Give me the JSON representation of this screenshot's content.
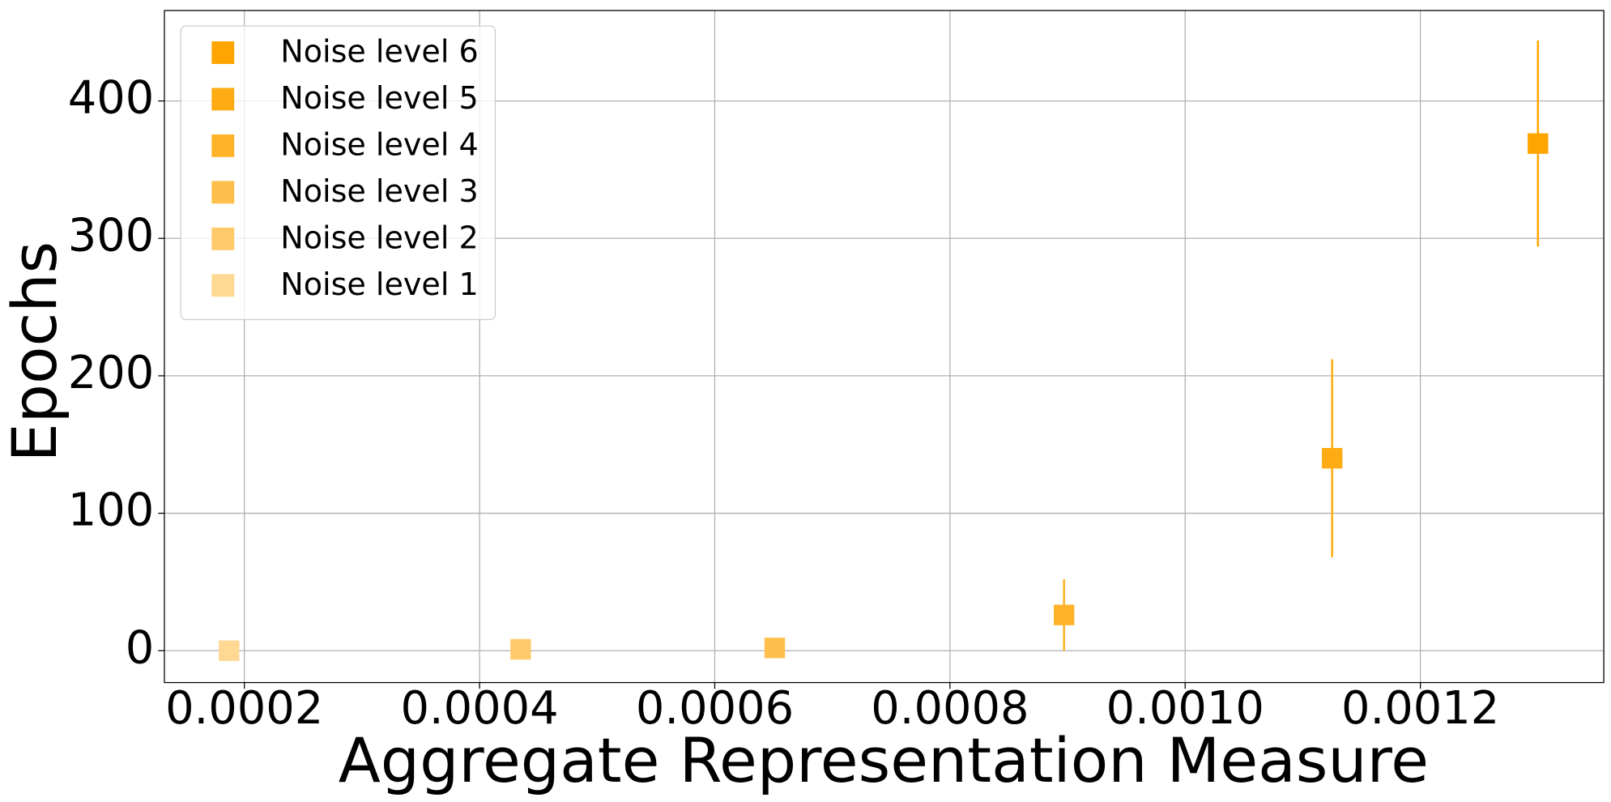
{
  "chart_data": {
    "type": "scatter",
    "xlabel": "Aggregate Representation Measure",
    "ylabel": "Epochs",
    "xlim": [
      0.000132,
      0.001356
    ],
    "ylim": [
      -23.2,
      465.8
    ],
    "xticks": [
      {
        "value": 0.0002,
        "label": "0.0002"
      },
      {
        "value": 0.0004,
        "label": "0.0004"
      },
      {
        "value": 0.0006,
        "label": "0.0006"
      },
      {
        "value": 0.0008,
        "label": "0.0008"
      },
      {
        "value": 0.001,
        "label": "0.0010"
      },
      {
        "value": 0.0012,
        "label": "0.0012"
      }
    ],
    "yticks": [
      0,
      100,
      200,
      300,
      400
    ],
    "grid": true,
    "legend": "upper-left",
    "series": [
      {
        "name": "Noise level 6",
        "color": "#ffa500",
        "x": [
          0.0013
        ],
        "values": [
          369
        ],
        "errors": [
          75
        ]
      },
      {
        "name": "Noise level 5",
        "color": "#ffab14",
        "x": [
          0.001125
        ],
        "values": [
          140
        ],
        "errors": [
          72
        ]
      },
      {
        "name": "Noise level 4",
        "color": "#ffb328",
        "x": [
          0.000897
        ],
        "values": [
          26
        ],
        "errors": [
          26
        ]
      },
      {
        "name": "Noise level 3",
        "color": "#ffbf4c",
        "x": [
          0.000651
        ],
        "values": [
          2
        ],
        "errors": [
          0
        ]
      },
      {
        "name": "Noise level 2",
        "color": "#ffca6a",
        "x": [
          0.000435
        ],
        "values": [
          1
        ],
        "errors": [
          0
        ]
      },
      {
        "name": "Noise level 1",
        "color": "#ffd894",
        "x": [
          0.000187
        ],
        "values": [
          0
        ],
        "errors": [
          0
        ]
      }
    ]
  }
}
